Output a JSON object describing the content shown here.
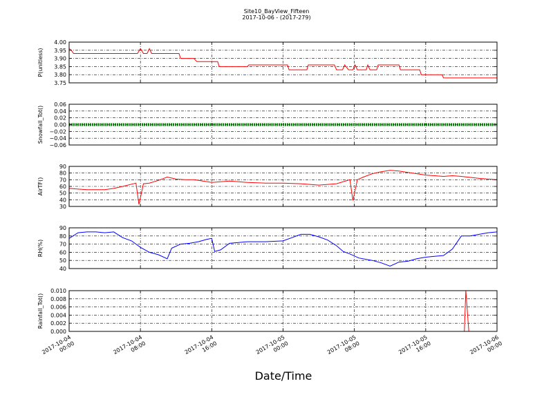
{
  "header": {
    "title": "Site10_BayView_Fifteen",
    "subtitle": "2017-10-06 - (2017-279)"
  },
  "xaxis_label": "Date/Time",
  "x_ticks": [
    {
      "line1": "2017-10-04",
      "line2": "00:00"
    },
    {
      "line1": "2017-10-04",
      "line2": "08:00"
    },
    {
      "line1": "2017-10-04",
      "line2": "16:00"
    },
    {
      "line1": "2017-10-05",
      "line2": "00:00"
    },
    {
      "line1": "2017-10-05",
      "line2": "08:00"
    },
    {
      "line1": "2017-10-05",
      "line2": "16:00"
    },
    {
      "line1": "2017-10-06",
      "line2": "00:00"
    }
  ],
  "chart_data": [
    {
      "type": "line",
      "ylabel": "P(unitless)",
      "ylim": [
        3.75,
        4.0
      ],
      "yticks": [
        "3.75",
        "3.80",
        "3.85",
        "3.90",
        "3.95",
        "4.00"
      ],
      "color": "#ff0000",
      "grid": true,
      "x_range": [
        "2017-10-04 00:00",
        "2017-10-06 00:00"
      ],
      "points": [
        [
          "2017-10-04 00:00",
          3.96
        ],
        [
          "2017-10-04 00:15",
          3.95
        ],
        [
          "2017-10-04 00:30",
          3.93
        ],
        [
          "2017-10-04 03:00",
          3.93
        ],
        [
          "2017-10-04 07:40",
          3.93
        ],
        [
          "2017-10-04 08:00",
          3.96
        ],
        [
          "2017-10-04 08:20",
          3.93
        ],
        [
          "2017-10-04 08:45",
          3.93
        ],
        [
          "2017-10-04 09:00",
          3.96
        ],
        [
          "2017-10-04 09:15",
          3.93
        ],
        [
          "2017-10-04 12:20",
          3.93
        ],
        [
          "2017-10-04 12:30",
          3.9
        ],
        [
          "2017-10-04 14:00",
          3.9
        ],
        [
          "2017-10-04 14:20",
          3.88
        ],
        [
          "2017-10-04 16:40",
          3.88
        ],
        [
          "2017-10-04 16:50",
          3.85
        ],
        [
          "2017-10-04 20:00",
          3.85
        ],
        [
          "2017-10-04 20:10",
          3.86
        ],
        [
          "2017-10-05 00:30",
          3.86
        ],
        [
          "2017-10-05 00:40",
          3.83
        ],
        [
          "2017-10-05 02:40",
          3.83
        ],
        [
          "2017-10-05 02:50",
          3.86
        ],
        [
          "2017-10-05 05:45",
          3.86
        ],
        [
          "2017-10-05 06:00",
          3.83
        ],
        [
          "2017-10-05 06:40",
          3.83
        ],
        [
          "2017-10-05 06:55",
          3.86
        ],
        [
          "2017-10-05 07:20",
          3.83
        ],
        [
          "2017-10-05 07:50",
          3.83
        ],
        [
          "2017-10-05 08:05",
          3.86
        ],
        [
          "2017-10-05 08:20",
          3.83
        ],
        [
          "2017-10-05 09:20",
          3.83
        ],
        [
          "2017-10-05 09:30",
          3.86
        ],
        [
          "2017-10-05 09:45",
          3.83
        ],
        [
          "2017-10-05 10:30",
          3.83
        ],
        [
          "2017-10-05 10:40",
          3.86
        ],
        [
          "2017-10-05 13:00",
          3.86
        ],
        [
          "2017-10-05 13:10",
          3.83
        ],
        [
          "2017-10-05 15:20",
          3.83
        ],
        [
          "2017-10-05 15:30",
          3.8
        ],
        [
          "2017-10-05 17:50",
          3.8
        ],
        [
          "2017-10-05 18:00",
          3.78
        ],
        [
          "2017-10-06 00:00",
          3.78
        ]
      ]
    },
    {
      "type": "scatter",
      "ylabel": "Snowfall_Tot()",
      "ylim": [
        -0.06,
        0.06
      ],
      "yticks": [
        "−0.06",
        "−0.04",
        "−0.02",
        "0.00",
        "0.02",
        "0.04",
        "0.06"
      ],
      "color": "#008000",
      "grid": true,
      "x_range": [
        "2017-10-04 00:00",
        "2017-10-06 00:00"
      ],
      "points": [
        [
          "2017-10-04 00:00",
          0.0
        ],
        [
          "2017-10-06 00:00",
          0.0
        ]
      ]
    },
    {
      "type": "line",
      "ylabel": "AirTF()",
      "ylim": [
        30,
        90
      ],
      "yticks": [
        "30",
        "40",
        "50",
        "60",
        "70",
        "80",
        "90"
      ],
      "color": "#ff0000",
      "grid": true,
      "x_range": [
        "2017-10-04 00:00",
        "2017-10-06 00:00"
      ],
      "points": [
        [
          "2017-10-04 00:00",
          57
        ],
        [
          "2017-10-04 01:00",
          56
        ],
        [
          "2017-10-04 02:00",
          55
        ],
        [
          "2017-10-04 03:00",
          55
        ],
        [
          "2017-10-04 04:00",
          55
        ],
        [
          "2017-10-04 05:00",
          57
        ],
        [
          "2017-10-04 06:00",
          60
        ],
        [
          "2017-10-04 07:30",
          65
        ],
        [
          "2017-10-04 07:50",
          33
        ],
        [
          "2017-10-04 08:20",
          64
        ],
        [
          "2017-10-04 09:00",
          65
        ],
        [
          "2017-10-04 10:00",
          69
        ],
        [
          "2017-10-04 11:00",
          74
        ],
        [
          "2017-10-04 12:00",
          71
        ],
        [
          "2017-10-04 13:00",
          70
        ],
        [
          "2017-10-04 14:00",
          70
        ],
        [
          "2017-10-04 15:00",
          68
        ],
        [
          "2017-10-04 16:00",
          66
        ],
        [
          "2017-10-04 17:00",
          67
        ],
        [
          "2017-10-04 18:00",
          68
        ],
        [
          "2017-10-04 20:00",
          66
        ],
        [
          "2017-10-04 22:00",
          65
        ],
        [
          "2017-10-05 00:00",
          65
        ],
        [
          "2017-10-05 02:00",
          64
        ],
        [
          "2017-10-05 04:00",
          62
        ],
        [
          "2017-10-05 06:00",
          64
        ],
        [
          "2017-10-05 07:30",
          70
        ],
        [
          "2017-10-05 07:50",
          39
        ],
        [
          "2017-10-05 08:20",
          70
        ],
        [
          "2017-10-05 09:00",
          74
        ],
        [
          "2017-10-05 10:00",
          79
        ],
        [
          "2017-10-05 11:00",
          82
        ],
        [
          "2017-10-05 12:00",
          84
        ],
        [
          "2017-10-05 13:00",
          83
        ],
        [
          "2017-10-05 14:00",
          81
        ],
        [
          "2017-10-05 15:00",
          79
        ],
        [
          "2017-10-05 16:00",
          77
        ],
        [
          "2017-10-05 17:00",
          76
        ],
        [
          "2017-10-05 18:00",
          75
        ],
        [
          "2017-10-05 19:00",
          76
        ],
        [
          "2017-10-05 20:00",
          75
        ],
        [
          "2017-10-05 22:00",
          72
        ],
        [
          "2017-10-06 00:00",
          70
        ]
      ]
    },
    {
      "type": "line",
      "ylabel": "RH(%)",
      "ylim": [
        40,
        90
      ],
      "yticks": [
        "40",
        "50",
        "60",
        "70",
        "80",
        "90"
      ],
      "color": "#0000ff",
      "grid": true,
      "x_range": [
        "2017-10-04 00:00",
        "2017-10-06 00:00"
      ],
      "points": [
        [
          "2017-10-04 00:00",
          77
        ],
        [
          "2017-10-04 01:00",
          84
        ],
        [
          "2017-10-04 02:00",
          85
        ],
        [
          "2017-10-04 03:00",
          85
        ],
        [
          "2017-10-04 04:00",
          84
        ],
        [
          "2017-10-04 05:00",
          85
        ],
        [
          "2017-10-04 06:00",
          78
        ],
        [
          "2017-10-04 07:00",
          74
        ],
        [
          "2017-10-04 08:00",
          66
        ],
        [
          "2017-10-04 09:00",
          60
        ],
        [
          "2017-10-04 10:00",
          57
        ],
        [
          "2017-10-04 11:00",
          52
        ],
        [
          "2017-10-04 11:30",
          65
        ],
        [
          "2017-10-04 12:30",
          70
        ],
        [
          "2017-10-04 13:30",
          71
        ],
        [
          "2017-10-04 14:30",
          73
        ],
        [
          "2017-10-04 15:30",
          76
        ],
        [
          "2017-10-04 16:00",
          77
        ],
        [
          "2017-10-04 16:20",
          61
        ],
        [
          "2017-10-04 17:00",
          63
        ],
        [
          "2017-10-04 18:00",
          71
        ],
        [
          "2017-10-04 19:00",
          72
        ],
        [
          "2017-10-04 20:00",
          73
        ],
        [
          "2017-10-04 22:00",
          73
        ],
        [
          "2017-10-05 00:00",
          74
        ],
        [
          "2017-10-05 01:00",
          78
        ],
        [
          "2017-10-05 02:00",
          82
        ],
        [
          "2017-10-05 03:00",
          82
        ],
        [
          "2017-10-05 04:00",
          79
        ],
        [
          "2017-10-05 05:00",
          75
        ],
        [
          "2017-10-05 06:00",
          68
        ],
        [
          "2017-10-05 06:45",
          61
        ],
        [
          "2017-10-05 07:30",
          58
        ],
        [
          "2017-10-05 08:30",
          53
        ],
        [
          "2017-10-05 10:00",
          50
        ],
        [
          "2017-10-05 11:00",
          47
        ],
        [
          "2017-10-05 12:00",
          43
        ],
        [
          "2017-10-05 13:00",
          48
        ],
        [
          "2017-10-05 14:00",
          49
        ],
        [
          "2017-10-05 15:00",
          52
        ],
        [
          "2017-10-05 16:00",
          54
        ],
        [
          "2017-10-05 17:00",
          55
        ],
        [
          "2017-10-05 18:00",
          56
        ],
        [
          "2017-10-05 19:00",
          64
        ],
        [
          "2017-10-05 20:00",
          80
        ],
        [
          "2017-10-05 21:00",
          80
        ],
        [
          "2017-10-05 22:00",
          82
        ],
        [
          "2017-10-05 23:00",
          84
        ],
        [
          "2017-10-06 00:00",
          85
        ]
      ]
    },
    {
      "type": "line",
      "ylabel": "Rainfall_Tot()",
      "ylim": [
        0.0,
        0.01
      ],
      "yticks": [
        "0.000",
        "0.002",
        "0.004",
        "0.006",
        "0.008",
        "0.010"
      ],
      "color": "#ff0000",
      "grid": true,
      "x_range": [
        "2017-10-04 00:00",
        "2017-10-06 00:00"
      ],
      "points": [
        [
          "2017-10-04 00:00",
          0.0
        ],
        [
          "2017-10-05 20:20",
          0.0
        ],
        [
          "2017-10-05 20:30",
          0.01
        ],
        [
          "2017-10-05 20:50",
          0.0
        ],
        [
          "2017-10-06 00:00",
          0.0
        ]
      ]
    }
  ]
}
